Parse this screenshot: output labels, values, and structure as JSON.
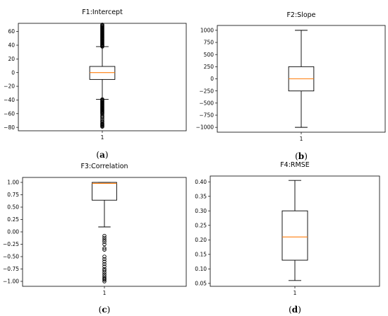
{
  "chart_data": [
    {
      "type": "boxplot",
      "title": "F1:Intercept",
      "caption_letter": "a",
      "categories": [
        "1"
      ],
      "ylim": [
        -85,
        72
      ],
      "yticks": [
        -80,
        -60,
        -40,
        -20,
        0,
        20,
        40,
        60
      ],
      "ytick_labels": [
        "−80",
        "−60",
        "−40",
        "−20",
        "0",
        "20",
        "40",
        "60"
      ],
      "box": {
        "whisker_low": -39,
        "q1": -10,
        "median": 0,
        "q3": 9,
        "whisker_high": 38
      },
      "outliers": [
        38,
        39,
        40,
        41,
        42,
        43,
        44,
        45,
        46,
        47,
        48,
        49,
        50,
        51,
        52,
        53,
        54,
        55,
        56,
        57,
        58,
        59,
        60,
        61,
        62,
        63,
        64,
        65,
        66,
        67,
        68,
        69,
        70,
        -39,
        -40,
        -41,
        -42,
        -43,
        -44,
        -45,
        -46,
        -47,
        -48,
        -49,
        -50,
        -51,
        -52,
        -53,
        -54,
        -55,
        -56,
        -57,
        -58,
        -59,
        -60,
        -62,
        -64,
        -65,
        -67,
        -69,
        -71,
        -72,
        -74,
        -75,
        -76,
        -77,
        -78,
        -79
      ]
    },
    {
      "type": "boxplot",
      "title": "F2:Slope",
      "caption_letter": "b",
      "categories": [
        "1"
      ],
      "ylim": [
        -1100,
        1100
      ],
      "yticks": [
        -1000,
        -750,
        -500,
        -250,
        0,
        250,
        500,
        750,
        1000
      ],
      "ytick_labels": [
        "−1000",
        "−750",
        "−500",
        "−250",
        "0",
        "250",
        "500",
        "750",
        "1000"
      ],
      "box": {
        "whisker_low": -1000,
        "q1": -250,
        "median": 0,
        "q3": 250,
        "whisker_high": 1000
      },
      "outliers": []
    },
    {
      "type": "boxplot",
      "title": "F3:Correlation",
      "caption_letter": "c",
      "categories": [
        "1"
      ],
      "ylim": [
        -1.1,
        1.1
      ],
      "yticks": [
        -1.0,
        -0.75,
        -0.5,
        -0.25,
        0.0,
        0.25,
        0.5,
        0.75,
        1.0
      ],
      "ytick_labels": [
        "−1.00",
        "−0.75",
        "−0.50",
        "−0.25",
        "0.00",
        "0.25",
        "0.50",
        "0.75",
        "1.00"
      ],
      "box": {
        "whisker_low": 0.1,
        "q1": 0.64,
        "median": 0.98,
        "q3": 1.0,
        "whisker_high": 1.0
      },
      "outliers": [
        -0.08,
        -0.12,
        -0.16,
        -0.2,
        -0.25,
        -0.33,
        -0.36,
        -0.5,
        -0.55,
        -0.6,
        -0.65,
        -0.7,
        -0.75,
        -0.78,
        -0.82,
        -0.86,
        -0.9,
        -0.93,
        -0.95,
        -0.97,
        -1.0
      ]
    },
    {
      "type": "boxplot",
      "title": "F4:RMSE",
      "caption_letter": "d",
      "categories": [
        "1"
      ],
      "ylim": [
        0.04,
        0.42
      ],
      "yticks": [
        0.05,
        0.1,
        0.15,
        0.2,
        0.25,
        0.3,
        0.35,
        0.4
      ],
      "ytick_labels": [
        "0.05",
        "0.10",
        "0.15",
        "0.20",
        "0.25",
        "0.30",
        "0.35",
        "0.40"
      ],
      "box": {
        "whisker_low": 0.06,
        "q1": 0.13,
        "median": 0.21,
        "q3": 0.3,
        "whisker_high": 0.405
      },
      "outliers": []
    }
  ],
  "colors": {
    "median": "#ff7f0e",
    "box": "#000000",
    "axes": "#000000"
  }
}
